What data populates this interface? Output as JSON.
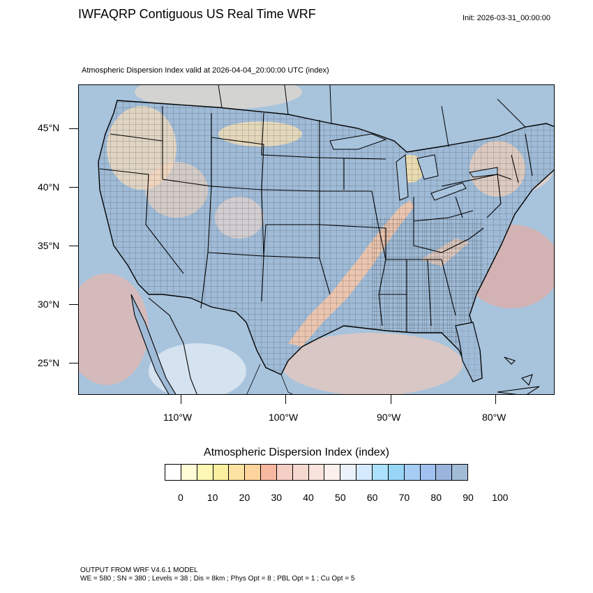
{
  "header": {
    "title": "IWFAQRP Contiguous US Real Time WRF",
    "init": "Init: 2026-03-31_00:00:00",
    "subtitle": "Atmospheric Dispersion Index valid at 2026-04-04_20:00:00 UTC   (index)"
  },
  "map": {
    "lat_labels": [
      "45°N",
      "40°N",
      "35°N",
      "30°N",
      "25°N"
    ],
    "lon_labels": [
      "110°W",
      "100°W",
      "90°W",
      "80°W"
    ],
    "colors": {
      "water": "#a9c2dc",
      "land_default": "#9dbad6",
      "low_dispersion": "#f4d4b8",
      "very_low": "#fde7a5",
      "high": "#f6a08a",
      "borders": "#000000"
    }
  },
  "colorbar": {
    "title": "Atmospheric Dispersion Index  (index)",
    "colors": [
      "#ffffff",
      "#fffcd6",
      "#fdf8b4",
      "#fbefa0",
      "#fde3a3",
      "#fdd49c",
      "#f8b8a0",
      "#f4cfc5",
      "#f5d8d0",
      "#f8e4dc",
      "#fbf0ec",
      "#ecf2fb",
      "#d5eafd",
      "#ace2fd",
      "#98d6f8",
      "#a6cdf4",
      "#a1c2f0",
      "#9ab5dd",
      "#a2bcd6"
    ],
    "labels": [
      "0",
      "10",
      "20",
      "30",
      "40",
      "50",
      "60",
      "70",
      "80",
      "90",
      "100"
    ]
  },
  "footer": {
    "line1": "OUTPUT FROM WRF V4.6.1 MODEL",
    "line2": "WE = 580 ; SN = 380 ; Levels = 38 ; Dis = 8km ; Phys Opt = 8 ; PBL Opt = 1 ; Cu Opt = 5"
  }
}
